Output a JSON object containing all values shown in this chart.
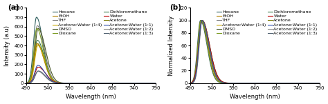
{
  "panel_a_label": "(a)",
  "panel_b_label": "(b)",
  "xlabel": "Wavelength (nm)",
  "ylabel_a": "Intensity (a.u)",
  "ylabel_b": "Normalized Intensity",
  "xlim": [
    490,
    790
  ],
  "ylim_a": [
    0,
    800
  ],
  "ylim_b": [
    0,
    120
  ],
  "xticks": [
    490,
    540,
    590,
    640,
    690,
    740,
    790
  ],
  "yticks_a": [
    0,
    100,
    200,
    300,
    400,
    500,
    600,
    700,
    800
  ],
  "yticks_b": [
    0,
    20,
    40,
    60,
    80,
    100,
    120
  ],
  "solvent_lines": [
    {
      "name": "Hexane",
      "peak": 700,
      "color": "#2e5e5e",
      "lw": 0.8,
      "peak_nm": 514,
      "sigma_r": 7,
      "sigma_f": 15
    },
    {
      "name": "THF",
      "peak": 610,
      "color": "#7a7a7a",
      "lw": 0.8,
      "peak_nm": 516,
      "sigma_r": 7,
      "sigma_f": 16
    },
    {
      "name": "DMSO",
      "peak": 580,
      "color": "#4a5a2a",
      "lw": 0.8,
      "peak_nm": 518,
      "sigma_r": 8,
      "sigma_f": 17
    },
    {
      "name": "Dichloromethane",
      "peak": 455,
      "color": "#3a7a4a",
      "lw": 0.8,
      "peak_nm": 516,
      "sigma_r": 7,
      "sigma_f": 16
    },
    {
      "name": "Acetone",
      "peak": 420,
      "color": "#7a7a00",
      "lw": 0.8,
      "peak_nm": 516,
      "sigma_r": 7,
      "sigma_f": 16
    },
    {
      "name": "Acetone:Water (1:2)",
      "peak": 125,
      "color": "#909090",
      "lw": 0.8,
      "peak_nm": 517,
      "sigma_r": 7,
      "sigma_f": 16
    },
    {
      "name": "EtOH",
      "peak": 420,
      "color": "#b08000",
      "lw": 0.8,
      "peak_nm": 515,
      "sigma_r": 7,
      "sigma_f": 16
    },
    {
      "name": "Acetone:Water (1:4)",
      "peak": 400,
      "color": "#c8a800",
      "lw": 0.8,
      "peak_nm": 517,
      "sigma_r": 7,
      "sigma_f": 16
    },
    {
      "name": "Dioxane",
      "peak": 580,
      "color": "#7a9a20",
      "lw": 0.8,
      "peak_nm": 515,
      "sigma_r": 7,
      "sigma_f": 15
    },
    {
      "name": "Water",
      "peak": 170,
      "color": "#bb0000",
      "lw": 0.8,
      "peak_nm": 518,
      "sigma_r": 8,
      "sigma_f": 17
    },
    {
      "name": "Acetone:Water (1:1)",
      "peak": 190,
      "color": "#3050b0",
      "lw": 0.8,
      "peak_nm": 517,
      "sigma_r": 7,
      "sigma_f": 16
    },
    {
      "name": "Acetone:Water (1:3)",
      "peak": 130,
      "color": "#506070",
      "lw": 0.8,
      "peak_nm": 518,
      "sigma_r": 7,
      "sigma_f": 16
    }
  ],
  "legend_order_a_col1": [
    "Hexane",
    "THF",
    "DMSO",
    "Dichloromethane",
    "Acetone",
    "Acetone:Water (1:2)"
  ],
  "legend_order_a_col2": [
    "EtOH",
    "Acetone:Water (1:4)",
    "Dioxane",
    "Water",
    "Acetone:Water (1:1)",
    "Acetone:Water (1:3)"
  ],
  "legend_fontsize": 4.5,
  "axis_fontsize": 6.0,
  "tick_fontsize": 5.0,
  "label_fontsize": 7.5,
  "ylabel_b_full": "Normalized Intensity"
}
